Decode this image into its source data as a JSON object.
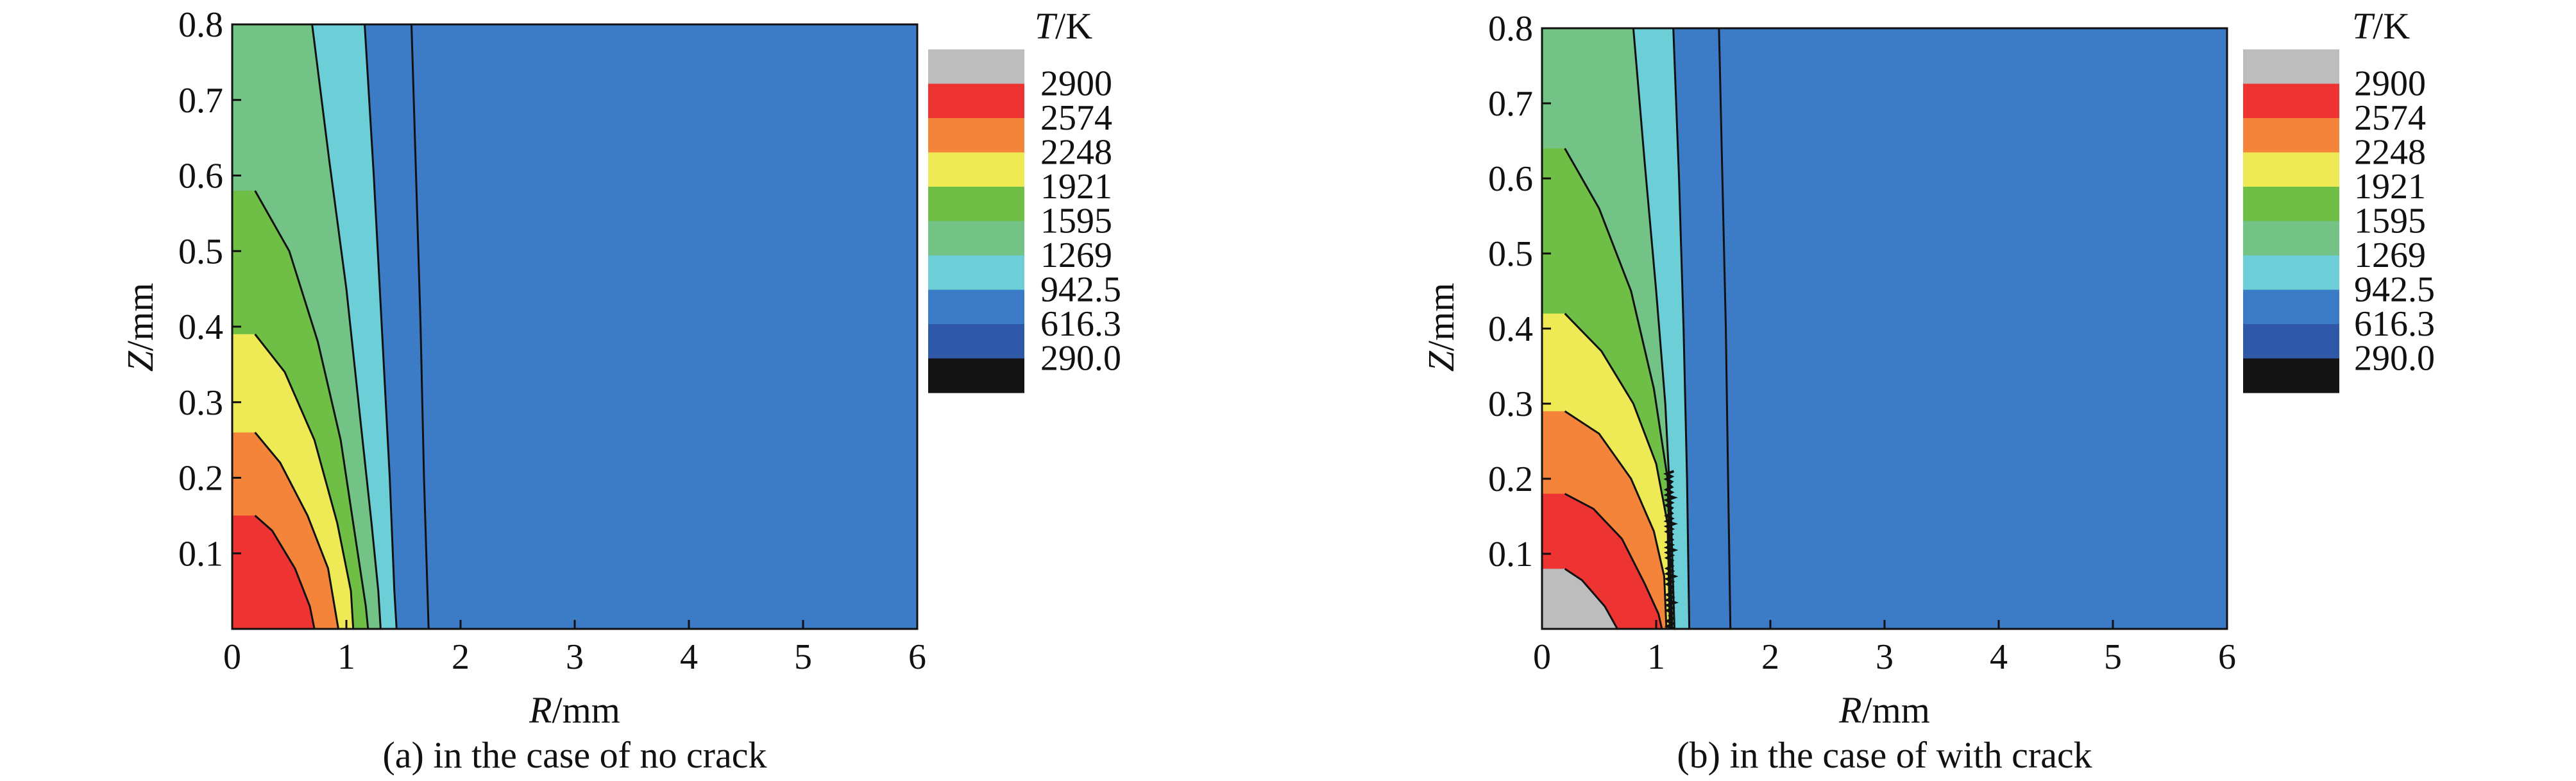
{
  "figure": {
    "panels": [
      {
        "caption": "(a) in the case of no crack",
        "xlabel_sym": "R",
        "xlabel_unit": "/mm",
        "ylabel_sym": "Z",
        "ylabel_unit": "/mm"
      },
      {
        "caption": "(b) in the case of with crack",
        "xlabel_sym": "R",
        "xlabel_unit": "/mm",
        "ylabel_sym": "Z",
        "ylabel_unit": "/mm"
      }
    ],
    "colorbar": {
      "title_sym": "T",
      "title_unit": "/K",
      "levels": [
        "2900",
        "2574",
        "2248",
        "1921",
        "1595",
        "1269",
        "942.5",
        "616.3",
        "290.0"
      ],
      "colors": [
        "#bdbdbd",
        "#ee3333",
        "#f3843a",
        "#eeea55",
        "#6fbf46",
        "#72c385",
        "#6ccfd8",
        "#3c7cc7",
        "#2f58a8",
        "#141414"
      ]
    }
  },
  "chart_data": [
    {
      "type": "contour",
      "panel": "a",
      "title": "",
      "xlabel": "R/mm",
      "ylabel": "Z/mm",
      "xlim": [
        0,
        6
      ],
      "ylim": [
        0,
        0.8
      ],
      "xticks": [
        "0",
        "1",
        "2",
        "3",
        "4",
        "5",
        "6"
      ],
      "yticks": [
        "0.1",
        "0.2",
        "0.3",
        "0.4",
        "0.5",
        "0.6",
        "0.7",
        "0.8"
      ],
      "background_band": 7,
      "contours": [
        {
          "level": 2574,
          "band_below": 1,
          "points": [
            [
              0.2,
              0.15
            ],
            [
              0.35,
              0.13
            ],
            [
              0.55,
              0.08
            ],
            [
              0.68,
              0.03
            ],
            [
              0.72,
              0
            ]
          ]
        },
        {
          "level": 2248,
          "band_below": 2,
          "points": [
            [
              0.2,
              0.26
            ],
            [
              0.42,
              0.22
            ],
            [
              0.66,
              0.15
            ],
            [
              0.84,
              0.08
            ],
            [
              0.93,
              0
            ]
          ]
        },
        {
          "level": 1921,
          "band_below": 3,
          "points": [
            [
              0.2,
              0.39
            ],
            [
              0.46,
              0.34
            ],
            [
              0.72,
              0.25
            ],
            [
              0.92,
              0.14
            ],
            [
              1.04,
              0.05
            ],
            [
              1.06,
              0
            ]
          ]
        },
        {
          "level": 1595,
          "band_below": 4,
          "points": [
            [
              0.2,
              0.58
            ],
            [
              0.5,
              0.5
            ],
            [
              0.75,
              0.38
            ],
            [
              0.95,
              0.25
            ],
            [
              1.08,
              0.12
            ],
            [
              1.17,
              0.03
            ],
            [
              1.19,
              0
            ]
          ]
        },
        {
          "level": 1269,
          "band_below": 5,
          "points": [
            [
              0.7,
              0.8
            ],
            [
              0.85,
              0.62
            ],
            [
              1.0,
              0.45
            ],
            [
              1.12,
              0.28
            ],
            [
              1.22,
              0.14
            ],
            [
              1.28,
              0.05
            ],
            [
              1.3,
              0
            ]
          ]
        },
        {
          "level": 942.5,
          "band_below": 6,
          "points": [
            [
              1.16,
              0.8
            ],
            [
              1.24,
              0.6
            ],
            [
              1.31,
              0.4
            ],
            [
              1.38,
              0.2
            ],
            [
              1.42,
              0.05
            ],
            [
              1.44,
              0
            ]
          ]
        },
        {
          "level": 616.3,
          "band_below": 7,
          "points": [
            [
              1.57,
              0.8
            ],
            [
              1.61,
              0.6
            ],
            [
              1.65,
              0.4
            ],
            [
              1.68,
              0.2
            ],
            [
              1.71,
              0.05
            ],
            [
              1.72,
              0
            ]
          ]
        }
      ]
    },
    {
      "type": "contour",
      "panel": "b",
      "title": "",
      "xlabel": "R/mm",
      "ylabel": "Z/mm",
      "xlim": [
        0,
        6
      ],
      "ylim": [
        0,
        0.8
      ],
      "xticks": [
        "0",
        "1",
        "2",
        "3",
        "4",
        "5",
        "6"
      ],
      "yticks": [
        "0.1",
        "0.2",
        "0.3",
        "0.4",
        "0.5",
        "0.6",
        "0.7",
        "0.8"
      ],
      "background_band": 7,
      "contours": [
        {
          "level": 2900,
          "band_below": 0,
          "points": [
            [
              0.2,
              0.08
            ],
            [
              0.35,
              0.065
            ],
            [
              0.55,
              0.03
            ],
            [
              0.66,
              0
            ]
          ]
        },
        {
          "level": 2574,
          "band_below": 1,
          "points": [
            [
              0.2,
              0.18
            ],
            [
              0.45,
              0.16
            ],
            [
              0.7,
              0.12
            ],
            [
              0.9,
              0.06
            ],
            [
              1.02,
              0.02
            ],
            [
              1.05,
              0
            ]
          ]
        },
        {
          "level": 2248,
          "band_below": 2,
          "points": [
            [
              0.2,
              0.29
            ],
            [
              0.5,
              0.26
            ],
            [
              0.78,
              0.2
            ],
            [
              0.98,
              0.13
            ],
            [
              1.07,
              0.07
            ],
            [
              1.09,
              0
            ]
          ]
        },
        {
          "level": 1921,
          "band_below": 3,
          "points": [
            [
              0.2,
              0.42
            ],
            [
              0.52,
              0.37
            ],
            [
              0.8,
              0.3
            ],
            [
              1.0,
              0.22
            ],
            [
              1.1,
              0.14
            ],
            [
              1.12,
              0
            ]
          ]
        },
        {
          "level": 1595,
          "band_below": 4,
          "points": [
            [
              0.2,
              0.64
            ],
            [
              0.5,
              0.56
            ],
            [
              0.78,
              0.45
            ],
            [
              0.98,
              0.32
            ],
            [
              1.1,
              0.2
            ],
            [
              1.14,
              0
            ]
          ]
        },
        {
          "level": 1269,
          "band_below": 5,
          "points": [
            [
              0.8,
              0.8
            ],
            [
              0.9,
              0.62
            ],
            [
              1.0,
              0.45
            ],
            [
              1.08,
              0.3
            ],
            [
              1.13,
              0.15
            ],
            [
              1.16,
              0
            ]
          ]
        },
        {
          "level": 942.5,
          "band_below": 6,
          "points": [
            [
              1.15,
              0.8
            ],
            [
              1.2,
              0.6
            ],
            [
              1.24,
              0.4
            ],
            [
              1.27,
              0.2
            ],
            [
              1.29,
              0
            ]
          ]
        },
        {
          "level": 616.3,
          "band_below": 7,
          "points": [
            [
              1.55,
              0.8
            ],
            [
              1.58,
              0.6
            ],
            [
              1.61,
              0.4
            ],
            [
              1.63,
              0.2
            ],
            [
              1.65,
              0
            ]
          ]
        }
      ]
    }
  ]
}
